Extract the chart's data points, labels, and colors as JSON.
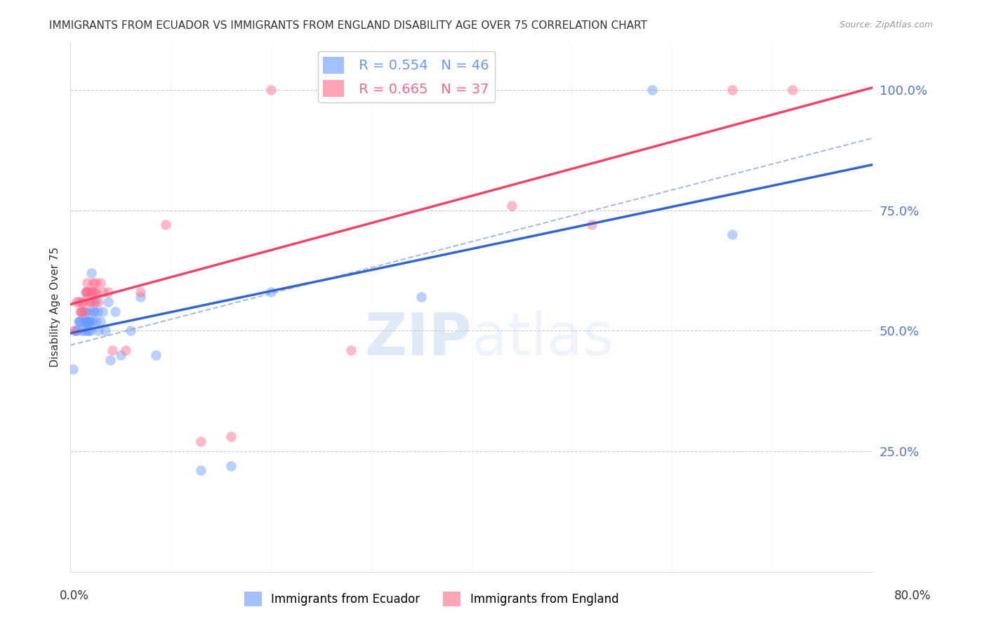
{
  "title": "IMMIGRANTS FROM ECUADOR VS IMMIGRANTS FROM ENGLAND DISABILITY AGE OVER 75 CORRELATION CHART",
  "source": "Source: ZipAtlas.com",
  "ylabel": "Disability Age Over 75",
  "legend1_color": "#6699ff",
  "legend2_color": "#ff6688",
  "line1_color": "#3366cc",
  "line2_color": "#ee4466",
  "dash_color": "#aabbdd",
  "background_color": "#ffffff",
  "grid_color": "#cccccc",
  "right_axis_color": "#5577cc",
  "title_color": "#333333",
  "ecuador_x": [
    0.003,
    0.005,
    0.007,
    0.008,
    0.009,
    0.01,
    0.011,
    0.012,
    0.013,
    0.014,
    0.015,
    0.015,
    0.016,
    0.016,
    0.017,
    0.017,
    0.018,
    0.018,
    0.019,
    0.019,
    0.02,
    0.02,
    0.021,
    0.022,
    0.023,
    0.024,
    0.025,
    0.026,
    0.027,
    0.028,
    0.03,
    0.032,
    0.035,
    0.038,
    0.04,
    0.045,
    0.05,
    0.06,
    0.07,
    0.085,
    0.13,
    0.16,
    0.2,
    0.58,
    0.66,
    0.35
  ],
  "ecuador_y": [
    0.42,
    0.5,
    0.5,
    0.52,
    0.52,
    0.52,
    0.54,
    0.5,
    0.52,
    0.5,
    0.52,
    0.54,
    0.52,
    0.58,
    0.52,
    0.5,
    0.52,
    0.5,
    0.54,
    0.52,
    0.52,
    0.5,
    0.62,
    0.52,
    0.54,
    0.54,
    0.56,
    0.52,
    0.54,
    0.5,
    0.52,
    0.54,
    0.5,
    0.56,
    0.44,
    0.54,
    0.45,
    0.5,
    0.57,
    0.45,
    0.21,
    0.22,
    0.58,
    1.0,
    0.7,
    0.57
  ],
  "england_x": [
    0.004,
    0.006,
    0.008,
    0.01,
    0.011,
    0.012,
    0.013,
    0.014,
    0.015,
    0.016,
    0.017,
    0.018,
    0.019,
    0.02,
    0.021,
    0.022,
    0.022,
    0.023,
    0.024,
    0.025,
    0.026,
    0.028,
    0.03,
    0.033,
    0.038,
    0.042,
    0.055,
    0.07,
    0.095,
    0.13,
    0.16,
    0.2,
    0.44,
    0.66,
    0.72,
    0.52,
    0.28
  ],
  "england_y": [
    0.5,
    0.56,
    0.56,
    0.54,
    0.54,
    0.56,
    0.56,
    0.54,
    0.58,
    0.58,
    0.6,
    0.58,
    0.56,
    0.56,
    0.58,
    0.58,
    0.6,
    0.56,
    0.58,
    0.6,
    0.58,
    0.56,
    0.6,
    0.58,
    0.58,
    0.46,
    0.46,
    0.58,
    0.72,
    0.27,
    0.28,
    1.0,
    0.76,
    1.0,
    1.0,
    0.72,
    0.46
  ],
  "xlim": [
    0.0,
    0.8
  ],
  "ylim": [
    0.0,
    1.1
  ],
  "ecuador_line_x": [
    0.0,
    0.8
  ],
  "ecuador_line_y": [
    0.495,
    0.845
  ],
  "england_line_x": [
    0.0,
    0.8
  ],
  "england_line_y": [
    0.555,
    1.005
  ],
  "dash_line_x": [
    0.0,
    0.8
  ],
  "dash_line_y": [
    0.47,
    0.9
  ]
}
